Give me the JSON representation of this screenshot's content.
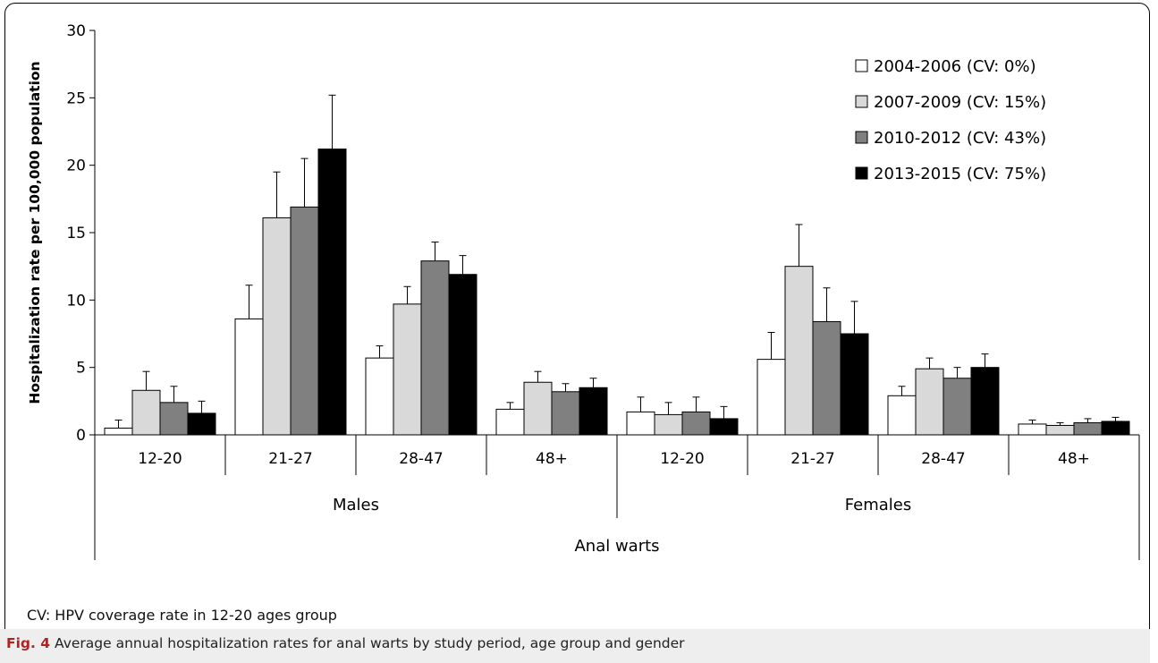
{
  "chart_data": {
    "type": "bar",
    "ylabel": "Hospitalization rate per 100,000 population",
    "ylim": [
      0,
      30
    ],
    "yticks": [
      "0",
      "5",
      "10",
      "15",
      "20",
      "25",
      "30"
    ],
    "xlabel": "Anal warts",
    "groups": [
      {
        "name": "Males",
        "categories": [
          "12-20",
          "21-27",
          "28-47",
          "48+"
        ]
      },
      {
        "name": "Females",
        "categories": [
          "12-20",
          "21-27",
          "28-47",
          "48+"
        ]
      }
    ],
    "categories": [
      "12-20",
      "21-27",
      "28-47",
      "48+",
      "12-20",
      "21-27",
      "28-47",
      "48+"
    ],
    "series": [
      {
        "name": "2004-2006 (CV: 0%)",
        "color": "#ffffff",
        "values": [
          0.5,
          8.6,
          5.7,
          1.9,
          1.7,
          5.6,
          2.9,
          0.8
        ],
        "errors": [
          0.6,
          2.5,
          0.9,
          0.5,
          1.1,
          2.0,
          0.7,
          0.3
        ]
      },
      {
        "name": "2007-2009 (CV: 15%)",
        "color": "#d9d9d9",
        "values": [
          3.3,
          16.1,
          9.7,
          3.9,
          1.5,
          12.5,
          4.9,
          0.7
        ],
        "errors": [
          1.4,
          3.4,
          1.3,
          0.8,
          0.9,
          3.1,
          0.8,
          0.2
        ]
      },
      {
        "name": "2010-2012 (CV: 43%)",
        "color": "#808080",
        "values": [
          2.4,
          16.9,
          12.9,
          3.2,
          1.7,
          8.4,
          4.2,
          0.9
        ],
        "errors": [
          1.2,
          3.6,
          1.4,
          0.6,
          1.1,
          2.5,
          0.8,
          0.3
        ]
      },
      {
        "name": "2013-2015 (CV: 75%)",
        "color": "#000000",
        "values": [
          1.6,
          21.2,
          11.9,
          3.5,
          1.2,
          7.5,
          5.0,
          1.0
        ],
        "errors": [
          0.9,
          4.0,
          1.4,
          0.7,
          0.9,
          2.4,
          1.0,
          0.3
        ]
      }
    ],
    "legend_position": "top-right",
    "grid": false
  },
  "note": "CV: HPV coverage rate in 12-20 ages group",
  "caption": {
    "label": "Fig. 4",
    "text": "Average annual hospitalization rates for anal warts by study period, age group and gender"
  }
}
